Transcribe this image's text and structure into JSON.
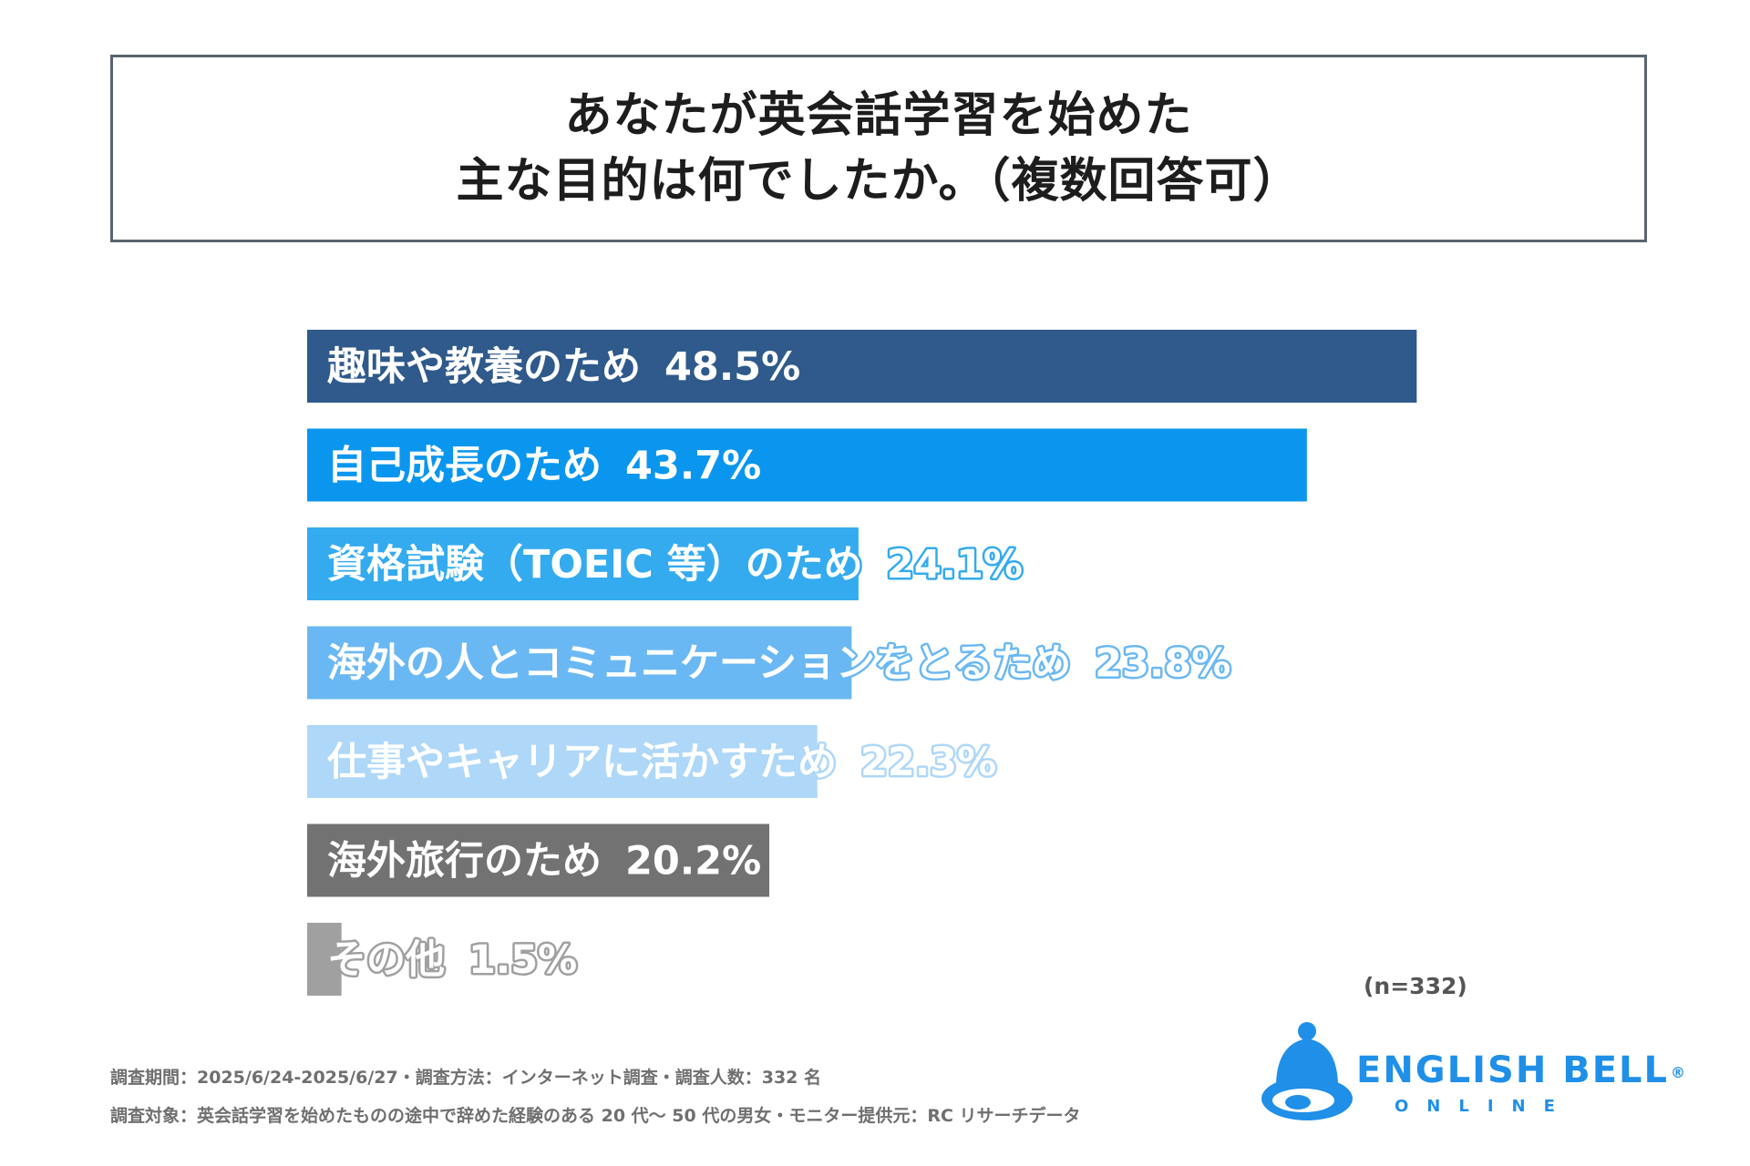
{
  "title": {
    "line1": "あなたが英会話学習を始めた",
    "line2": "主な目的は何でしたか。（複数回答可）"
  },
  "chart_data": {
    "type": "bar",
    "orientation": "horizontal",
    "categories": [
      "趣味や教養のため",
      "自己成長のため",
      "資格試験（TOEIC 等）のため",
      "海外の人とコミュニケーションをとるため",
      "仕事やキャリアに活かすため",
      "海外旅行のため",
      "その他"
    ],
    "values": [
      48.5,
      43.7,
      24.1,
      23.8,
      22.3,
      20.2,
      1.5
    ],
    "value_labels": [
      "48.5%",
      "43.7%",
      "24.1%",
      "23.8%",
      "22.3%",
      "20.2%",
      "1.5%"
    ],
    "colors": [
      "#2f5a8b",
      "#0a96ee",
      "#34abef",
      "#6ab8f3",
      "#aed7f8",
      "#727272",
      "#a0a0a0"
    ],
    "xlim": [
      0,
      50
    ],
    "grid": false,
    "legend": "none",
    "n_label": "(n=332)"
  },
  "footer": {
    "note1": "調査期間：2025/6/24-2025/6/27・調査方法：インターネット調査・調査人数：332 名",
    "note2": "調査対象：英会話学習を始めたものの途中で辞めた経験のある 20 代〜 50 代の男女・モニター提供元：RC リサーチデータ"
  },
  "logo": {
    "name": "ENGLISH BELL",
    "mark": "®",
    "sub": "ONLINE",
    "icon": "bell-icon"
  }
}
